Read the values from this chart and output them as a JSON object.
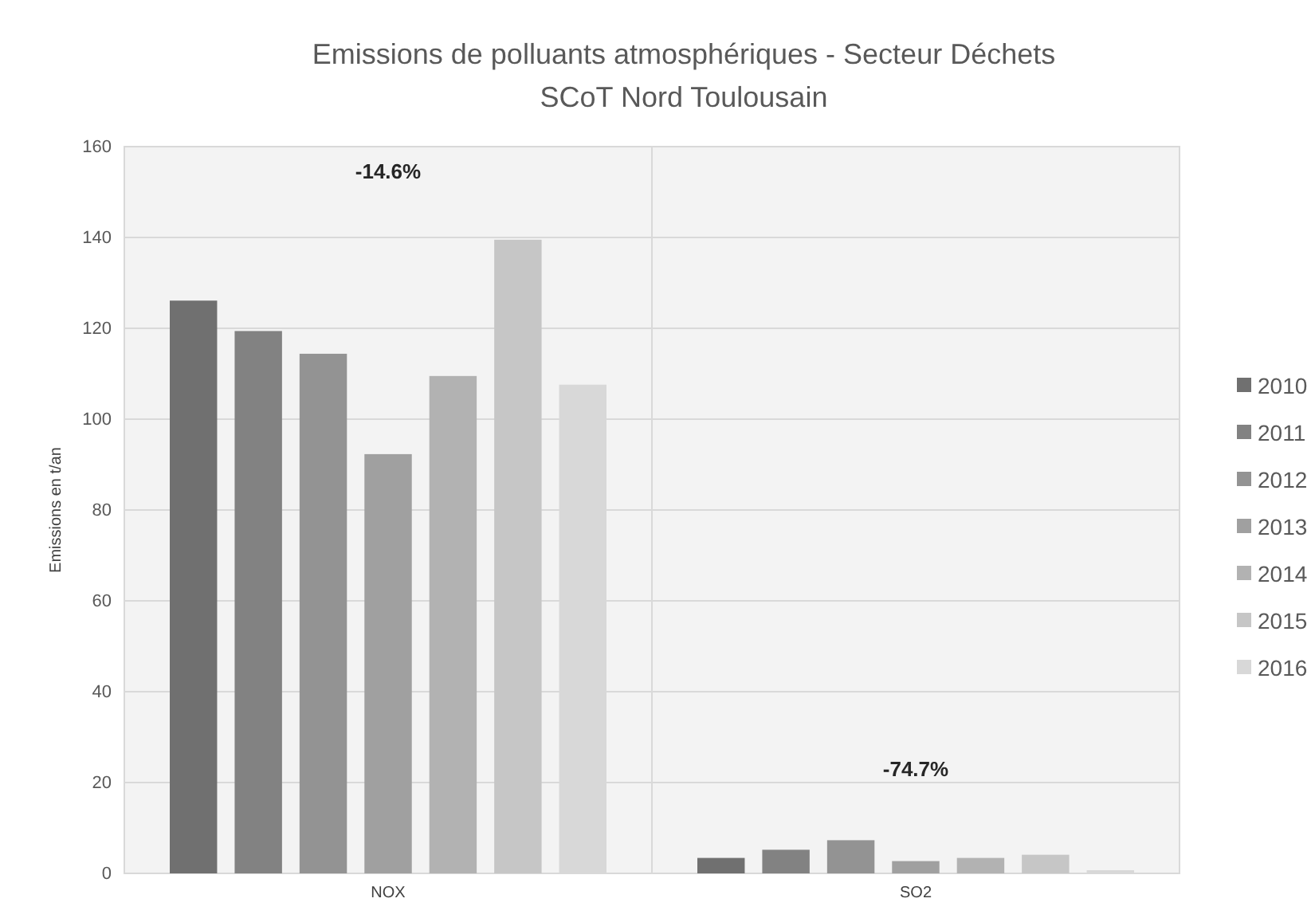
{
  "chart_data": {
    "type": "bar",
    "title": "Emissions de polluants atmosphériques - Secteur Déchets",
    "subtitle": "SCoT Nord Toulousain",
    "ylabel": "Emissions en t/an",
    "categories": [
      "NOX",
      "SO2"
    ],
    "series": [
      {
        "name": "2010",
        "color": "#707070",
        "values": [
          126.1,
          3.4
        ]
      },
      {
        "name": "2011",
        "color": "#828282",
        "values": [
          119.4,
          5.2
        ]
      },
      {
        "name": "2012",
        "color": "#939393",
        "values": [
          114.4,
          7.3
        ]
      },
      {
        "name": "2013",
        "color": "#a0a0a0",
        "values": [
          92.3,
          2.7
        ]
      },
      {
        "name": "2014",
        "color": "#b2b2b2",
        "values": [
          109.5,
          3.4
        ]
      },
      {
        "name": "2015",
        "color": "#c6c6c6",
        "values": [
          139.5,
          4.1
        ]
      },
      {
        "name": "2016",
        "color": "#d8d8d8",
        "values": [
          107.6,
          0.7
        ]
      }
    ],
    "ylim": [
      0,
      160
    ],
    "yticks": [
      0,
      20,
      40,
      60,
      80,
      100,
      120,
      140,
      160
    ],
    "grid": "y",
    "legend": "right",
    "annotations": [
      "-14.6%",
      "-74.7%"
    ]
  }
}
